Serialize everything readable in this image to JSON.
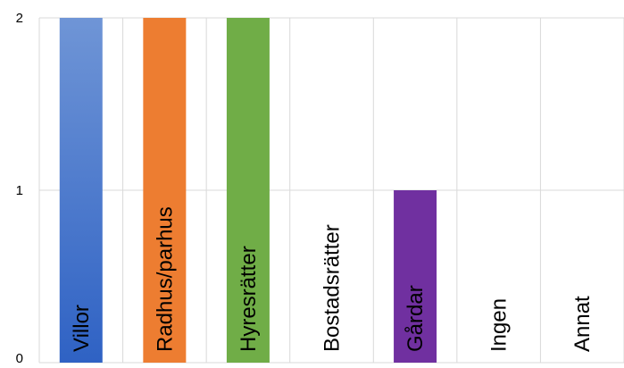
{
  "chart_data": {
    "type": "bar",
    "categories": [
      "Villor",
      "Radhus/parhus",
      "Hyresrätter",
      "Bostadsrätter",
      "Gårdar",
      "Ingen",
      "Annat"
    ],
    "values": [
      2,
      2,
      2,
      0,
      1,
      0,
      0
    ],
    "colors": [
      "#3d74cc",
      "#ed7d31",
      "#70ad47",
      "#d9d9d9",
      "#7030a0",
      "#d9d9d9",
      "#d9d9d9"
    ],
    "ylim": [
      0,
      2
    ],
    "yticks": [
      0,
      1,
      2
    ],
    "grid": true,
    "category_label_orientation": "vertical, inside bars"
  }
}
